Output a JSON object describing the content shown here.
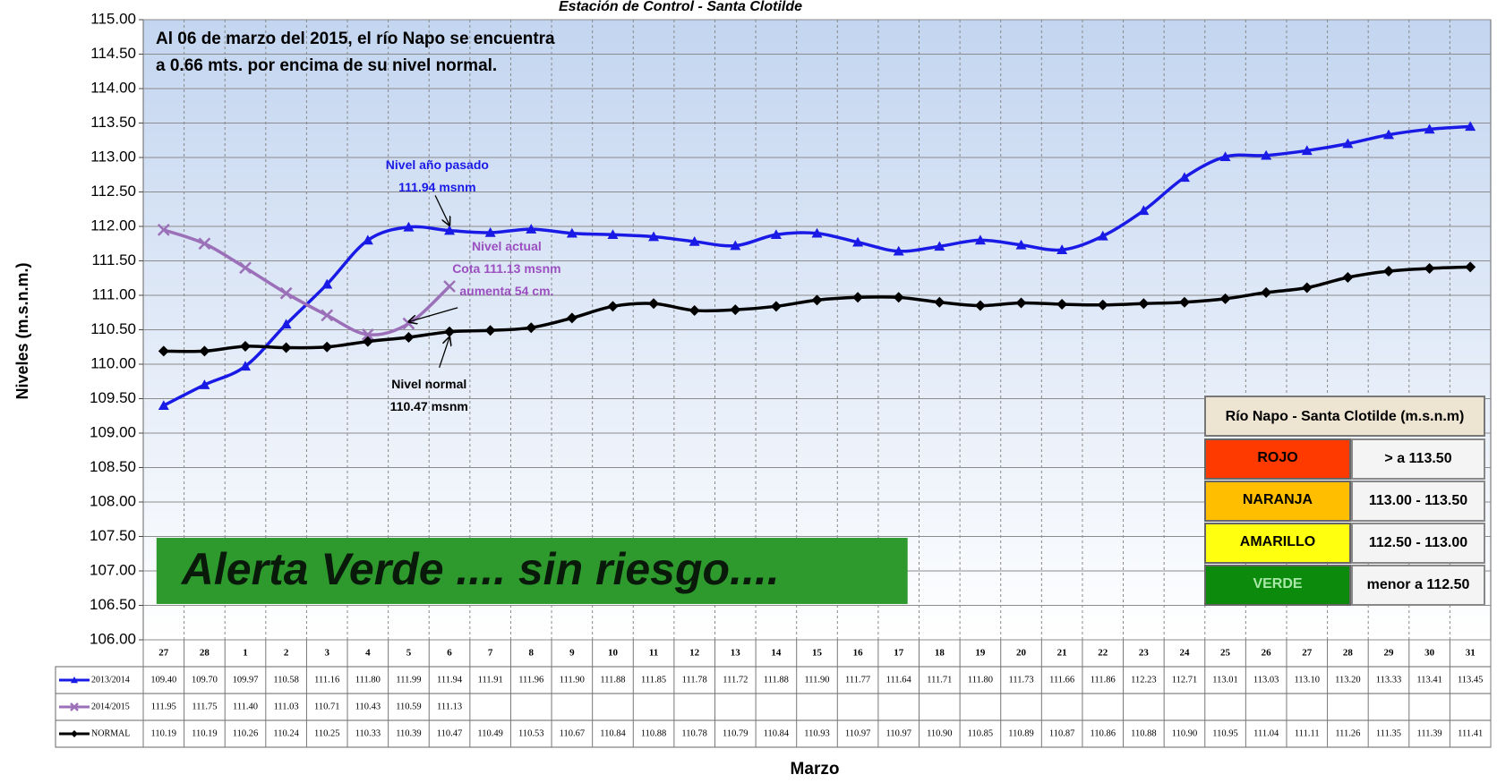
{
  "chart_data": {
    "type": "line",
    "title": "Estación de Control -  Santa Clotilde",
    "ylabel": "Niveles (m.s.n.m.)",
    "xlabel": "Marzo",
    "categories": [
      "27",
      "28",
      "1",
      "2",
      "3",
      "4",
      "5",
      "6",
      "7",
      "8",
      "9",
      "10",
      "11",
      "12",
      "13",
      "14",
      "15",
      "16",
      "17",
      "18",
      "19",
      "20",
      "21",
      "22",
      "23",
      "24",
      "25",
      "26",
      "27",
      "28",
      "29",
      "30",
      "31"
    ],
    "series": [
      {
        "name": "2013/2014",
        "color": "#1a1ae6",
        "marker": "triangle",
        "values": [
          109.4,
          109.7,
          109.97,
          110.58,
          111.16,
          111.8,
          111.99,
          111.94,
          111.91,
          111.96,
          111.9,
          111.88,
          111.85,
          111.78,
          111.72,
          111.88,
          111.9,
          111.77,
          111.64,
          111.71,
          111.8,
          111.73,
          111.66,
          111.86,
          112.23,
          112.71,
          113.01,
          113.03,
          113.1,
          113.2,
          113.33,
          113.41,
          113.45
        ],
        "value_labels": [
          "109.40",
          "109.70",
          "109.97",
          "110.58",
          "111.16",
          "111.80",
          "111.99",
          "111.94",
          "111.91",
          "111.96",
          "111.90",
          "111.88",
          "111.85",
          "111.78",
          "111.72",
          "111.88",
          "111.90",
          "111.77",
          "111.64",
          "111.71",
          "111.80",
          "111.73",
          "111.66",
          "111.86",
          "112.23",
          "112.71",
          "113.01",
          "113.03",
          "113.10",
          "113.20",
          "113.33",
          "113.41",
          "113.45"
        ]
      },
      {
        "name": "2014/2015",
        "color": "#9b70b8",
        "marker": "x",
        "values": [
          111.95,
          111.75,
          111.4,
          111.03,
          110.71,
          110.43,
          110.59,
          111.13,
          null,
          null,
          null,
          null,
          null,
          null,
          null,
          null,
          null,
          null,
          null,
          null,
          null,
          null,
          null,
          null,
          null,
          null,
          null,
          null,
          null,
          null,
          null,
          null,
          null
        ],
        "value_labels": [
          "111.95",
          "111.75",
          "111.40",
          "111.03",
          "110.71",
          "110.43",
          "110.59",
          "111.13",
          null,
          null,
          null,
          null,
          null,
          null,
          null,
          null,
          null,
          null,
          null,
          null,
          null,
          null,
          null,
          null,
          null,
          null,
          null,
          null,
          null,
          null,
          null,
          null,
          null
        ]
      },
      {
        "name": "NORMAL",
        "color": "#000000",
        "marker": "diamond",
        "values": [
          110.19,
          110.19,
          110.26,
          110.24,
          110.25,
          110.33,
          110.39,
          110.47,
          110.49,
          110.53,
          110.67,
          110.84,
          110.88,
          110.78,
          110.79,
          110.84,
          110.93,
          110.97,
          110.97,
          110.9,
          110.85,
          110.89,
          110.87,
          110.86,
          110.88,
          110.9,
          110.95,
          111.04,
          111.11,
          111.26,
          111.35,
          111.39,
          111.41
        ],
        "value_labels": [
          "110.19",
          "110.19",
          "110.26",
          "110.24",
          "110.25",
          "110.33",
          "110.39",
          "110.47",
          "110.49",
          "110.53",
          "110.67",
          "110.84",
          "110.88",
          "110.78",
          "110.79",
          "110.84",
          "110.93",
          "110.97",
          "110.97",
          "110.90",
          "110.85",
          "110.89",
          "110.87",
          "110.86",
          "110.88",
          "110.90",
          "110.95",
          "111.04",
          "111.11",
          "111.26",
          "111.35",
          "111.39",
          "111.41"
        ]
      }
    ],
    "ylim": [
      106,
      115
    ],
    "yticks": [
      {
        "value": 106,
        "label": "106.00"
      },
      {
        "value": 106.5,
        "label": "106.50"
      },
      {
        "value": 107,
        "label": "107.00"
      },
      {
        "value": 107.5,
        "label": "107.50"
      },
      {
        "value": 108,
        "label": "108.00"
      },
      {
        "value": 108.5,
        "label": "108.50"
      },
      {
        "value": 109,
        "label": "109.00"
      },
      {
        "value": 109.5,
        "label": "109.50"
      },
      {
        "value": 110,
        "label": "110.00"
      },
      {
        "value": 110.5,
        "label": "110.50"
      },
      {
        "value": 111,
        "label": "111.00"
      },
      {
        "value": 111.5,
        "label": "111.50"
      },
      {
        "value": 112,
        "label": "112.00"
      },
      {
        "value": 112.5,
        "label": "112.50"
      },
      {
        "value": 113,
        "label": "113.00"
      },
      {
        "value": 113.5,
        "label": "113.50"
      },
      {
        "value": 114,
        "label": "114.00"
      },
      {
        "value": 114.5,
        "label": "114.50"
      },
      {
        "value": 115,
        "label": "115.00"
      }
    ],
    "grid": true,
    "headline": [
      "Al  06  de marzo del 2015, el río Napo se encuentra",
      "a 0.66 mts. por encima de su nivel normal."
    ],
    "annotations": [
      {
        "lines": [
          "Nivel  año pasado",
          "111.94 msnm"
        ],
        "color": "#1a1ae6"
      },
      {
        "lines": [
          "Nivel actual",
          "Cota 111.13 msnm",
          "aumenta 54 cm."
        ],
        "color": "#9b4fc0"
      },
      {
        "lines": [
          "Nivel normal",
          "110.47 msnm"
        ],
        "color": "#000000"
      }
    ],
    "alert_banner": "Alerta  Verde ....    sin  riesgo....",
    "alert_table": {
      "title": "Río  Napo - Santa Clotilde (m.s.n.m)",
      "rows": [
        {
          "label": "ROJO",
          "range": "> a 113.50",
          "color": "#ff3a00"
        },
        {
          "label": "NARANJA",
          "range": "113.00 - 113.50",
          "color": "#ffbf00"
        },
        {
          "label": "AMARILLO",
          "range": "112.50 - 113.00",
          "color": "#ffff10"
        },
        {
          "label": "VERDE",
          "range": "menor a 112.50",
          "color": "#0b8a0b"
        }
      ]
    }
  }
}
